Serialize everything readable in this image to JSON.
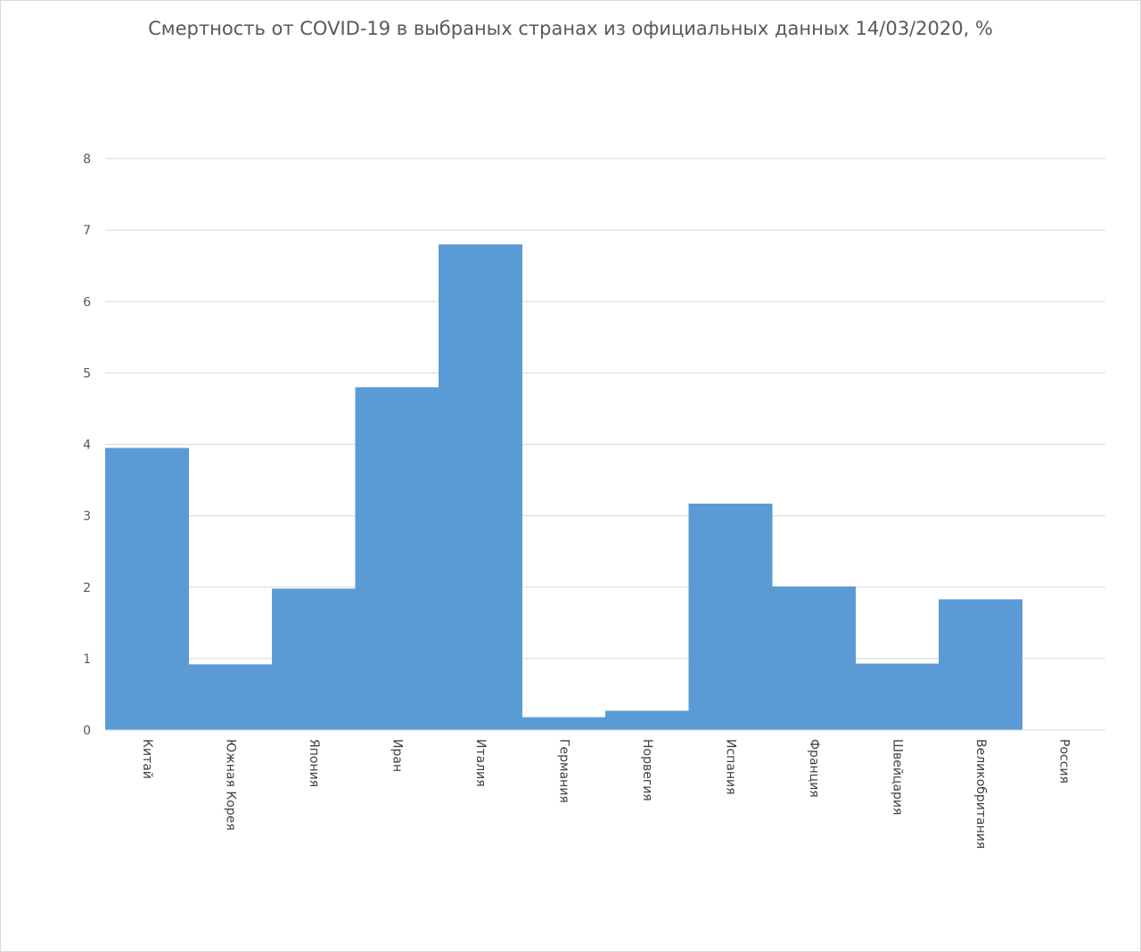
{
  "chart_data": {
    "type": "bar",
    "title": "Смертность от COVID-19 в выбраных странах из официальных данных 14/03/2020, %",
    "categories": [
      "Китай",
      "Южная Корея",
      "Япония",
      "Иран",
      "Италия",
      "Германия",
      "Норвегия",
      "Испания",
      "Франция",
      "Швейцария",
      "Великобритания",
      "Россия"
    ],
    "values": [
      3.95,
      0.92,
      1.98,
      4.8,
      6.8,
      0.18,
      0.27,
      3.17,
      2.01,
      0.93,
      1.83,
      0
    ],
    "ylim": [
      0,
      8
    ],
    "yticks": [
      0,
      1,
      2,
      3,
      4,
      5,
      6,
      7,
      8
    ],
    "grid": true,
    "bar_color": "#5b9bd5"
  }
}
